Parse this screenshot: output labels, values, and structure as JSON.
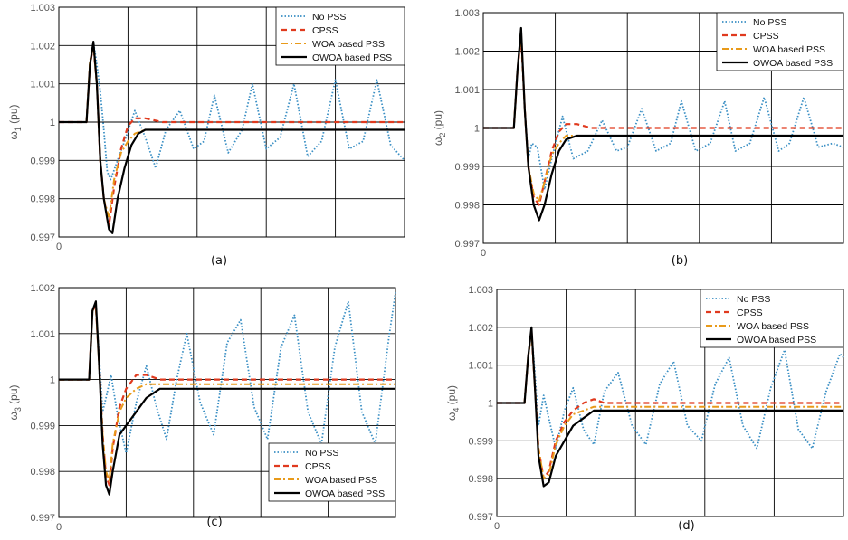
{
  "chart_data": [
    {
      "type": "line",
      "caption": "(a)",
      "ylabel_sym": "ω",
      "ylabel_sub": "1",
      "ylabel_unit": " (pu)",
      "ylim": [
        0.997,
        1.003
      ],
      "xlim": [
        0,
        10
      ],
      "yticks": [
        "1.003",
        "1.002",
        "1.001",
        "1",
        "0.999",
        "0.998",
        "0.997"
      ],
      "ytick_values": [
        1.003,
        1.002,
        1.001,
        1.0,
        0.999,
        0.998,
        0.997
      ],
      "xtick_label": "0",
      "grid": true,
      "legend_position": "top-right",
      "series": [
        {
          "name": "No PSS",
          "color": "#3a8fc4",
          "style": "dotted",
          "x": [
            0,
            0.8,
            0.9,
            1.0,
            1.1,
            1.2,
            1.3,
            1.4,
            1.5,
            1.7,
            1.9,
            2.2,
            2.5,
            2.8,
            3.1,
            3.5,
            3.9,
            4.2,
            4.5,
            4.9,
            5.3,
            5.6,
            6.0,
            6.4,
            6.8,
            7.2,
            7.6,
            8.0,
            8.4,
            8.8,
            9.2,
            9.6,
            10
          ],
          "y": [
            1.0,
            1.0,
            1.0015,
            1.0021,
            1.0015,
            1.0008,
            0.9998,
            0.9987,
            0.9985,
            0.999,
            0.9995,
            1.0003,
            0.9996,
            0.9988,
            0.9998,
            1.0003,
            0.9993,
            0.9995,
            1.0007,
            0.9992,
            0.9998,
            1.001,
            0.9993,
            0.9996,
            1.001,
            0.9991,
            0.9995,
            1.0011,
            0.9993,
            0.9995,
            1.0011,
            0.9994,
            0.999
          ]
        },
        {
          "name": "CPSS",
          "color": "#e03a1e",
          "style": "dashed",
          "x": [
            0,
            0.8,
            0.9,
            1.0,
            1.1,
            1.2,
            1.3,
            1.45,
            1.6,
            1.8,
            2.0,
            2.2,
            2.5,
            3.0,
            4,
            5,
            6,
            7,
            8,
            9,
            10
          ],
          "y": [
            1.0,
            1.0,
            1.0015,
            1.002,
            1.001,
            0.999,
            0.998,
            0.9973,
            0.9983,
            0.9993,
            0.9999,
            1.0001,
            1.0001,
            1.0,
            1.0,
            1.0,
            1.0,
            1.0,
            1.0,
            1.0,
            1.0
          ]
        },
        {
          "name": "WOA based PSS",
          "color": "#e89a1a",
          "style": "dashdot",
          "x": [
            0,
            0.8,
            0.9,
            1.0,
            1.1,
            1.2,
            1.3,
            1.45,
            1.6,
            1.8,
            2.0,
            2.2,
            2.5,
            3.0,
            4,
            5,
            6,
            7,
            8,
            9,
            10
          ],
          "y": [
            1.0,
            1.0,
            1.0016,
            1.002,
            1.001,
            0.999,
            0.998,
            0.9975,
            0.9985,
            0.9992,
            0.9995,
            0.9997,
            0.9998,
            0.9998,
            0.9998,
            0.9998,
            0.9998,
            0.9998,
            0.9998,
            0.9998,
            0.9998
          ]
        },
        {
          "name": "OWOA based PSS",
          "color": "#000000",
          "style": "solid",
          "x": [
            0,
            0.8,
            0.9,
            1.0,
            1.1,
            1.2,
            1.3,
            1.45,
            1.55,
            1.7,
            1.9,
            2.1,
            2.3,
            2.5,
            3.0,
            4,
            5,
            6,
            7,
            8,
            9,
            10
          ],
          "y": [
            1.0,
            1.0,
            1.0015,
            1.0021,
            1.001,
            0.999,
            0.998,
            0.9972,
            0.9971,
            0.998,
            0.9988,
            0.9994,
            0.9997,
            0.9998,
            0.9998,
            0.9998,
            0.9998,
            0.9998,
            0.9998,
            0.9998,
            0.9998,
            0.9998
          ]
        }
      ]
    },
    {
      "type": "line",
      "caption": "(b)",
      "ylabel_sym": "ω",
      "ylabel_sub": "2",
      "ylabel_unit": " (pu)",
      "ylim": [
        0.997,
        1.003
      ],
      "xlim": [
        0,
        10
      ],
      "yticks": [
        "1.003",
        "1.002",
        "1.001",
        "1",
        "0.999",
        "0.998",
        "0.997"
      ],
      "ytick_values": [
        1.003,
        1.002,
        1.001,
        1.0,
        0.999,
        0.998,
        0.997
      ],
      "xtick_label": "0",
      "grid": true,
      "legend_position": "top-right",
      "series": [
        {
          "name": "No PSS",
          "color": "#3a8fc4",
          "style": "dotted",
          "x": [
            0,
            0.85,
            0.95,
            1.05,
            1.15,
            1.25,
            1.35,
            1.5,
            1.7,
            1.9,
            2.2,
            2.5,
            2.9,
            3.3,
            3.7,
            4.0,
            4.4,
            4.8,
            5.2,
            5.5,
            5.9,
            6.3,
            6.7,
            7.0,
            7.4,
            7.8,
            8.2,
            8.5,
            8.9,
            9.3,
            9.7,
            10
          ],
          "y": [
            1.0,
            1.0,
            1.0015,
            1.0024,
            1.0005,
            0.9992,
            0.9996,
            0.9995,
            0.9984,
            0.9992,
            1.0003,
            0.9992,
            0.9994,
            1.0002,
            0.9994,
            0.9995,
            1.0005,
            0.9994,
            0.9996,
            1.0007,
            0.9994,
            0.9996,
            1.0007,
            0.9994,
            0.9996,
            1.0008,
            0.9994,
            0.9996,
            1.0008,
            0.9995,
            0.9996,
            0.9995
          ]
        },
        {
          "name": "CPSS",
          "color": "#e03a1e",
          "style": "dashed",
          "x": [
            0,
            0.85,
            0.95,
            1.05,
            1.15,
            1.25,
            1.4,
            1.55,
            1.7,
            1.9,
            2.1,
            2.3,
            2.6,
            3.0,
            4,
            5,
            6,
            7,
            8,
            9,
            10
          ],
          "y": [
            1.0,
            1.0,
            1.0015,
            1.0024,
            1.0005,
            0.999,
            0.9982,
            0.998,
            0.9986,
            0.9994,
            0.9999,
            1.0001,
            1.0001,
            1.0,
            1.0,
            1.0,
            1.0,
            1.0,
            1.0,
            1.0,
            1.0
          ]
        },
        {
          "name": "WOA based PSS",
          "color": "#e89a1a",
          "style": "dashdot",
          "x": [
            0,
            0.85,
            0.95,
            1.05,
            1.15,
            1.25,
            1.4,
            1.55,
            1.7,
            1.9,
            2.1,
            2.3,
            2.6,
            3.0,
            4,
            5,
            6,
            7,
            8,
            9,
            10
          ],
          "y": [
            1.0,
            1.0,
            1.0015,
            1.0025,
            1.0005,
            0.999,
            0.9983,
            0.9981,
            0.9986,
            0.9993,
            0.9996,
            0.9998,
            0.9998,
            0.9998,
            0.9998,
            0.9998,
            0.9998,
            0.9998,
            0.9998,
            0.9998,
            0.9998
          ]
        },
        {
          "name": "OWOA based PSS",
          "color": "#000000",
          "style": "solid",
          "x": [
            0,
            0.85,
            0.95,
            1.05,
            1.15,
            1.25,
            1.4,
            1.55,
            1.7,
            1.9,
            2.1,
            2.3,
            2.6,
            3.0,
            4,
            5,
            6,
            7,
            8,
            9,
            10
          ],
          "y": [
            1.0,
            1.0,
            1.0015,
            1.0026,
            1.0005,
            0.999,
            0.998,
            0.9976,
            0.998,
            0.9988,
            0.9994,
            0.9997,
            0.9998,
            0.9998,
            0.9998,
            0.9998,
            0.9998,
            0.9998,
            0.9998,
            0.9998,
            0.9998
          ]
        }
      ]
    },
    {
      "type": "line",
      "caption": "(c)",
      "ylabel_sym": "ω",
      "ylabel_sub": "3",
      "ylabel_unit": " (pu)",
      "ylim": [
        0.997,
        1.002
      ],
      "xlim": [
        0,
        10
      ],
      "yticks": [
        "1.002",
        "1.001",
        "1",
        "0.999",
        "0.998",
        "0.997"
      ],
      "ytick_values": [
        1.002,
        1.001,
        1.0,
        0.999,
        0.998,
        0.997
      ],
      "xtick_label": "0",
      "grid": true,
      "legend_position": "bottom-right",
      "series": [
        {
          "name": "No PSS",
          "color": "#3a8fc4",
          "style": "dotted",
          "x": [
            0,
            0.9,
            1.0,
            1.1,
            1.2,
            1.3,
            1.4,
            1.55,
            1.75,
            2.0,
            2.3,
            2.6,
            2.9,
            3.2,
            3.5,
            3.8,
            4.2,
            4.6,
            5.0,
            5.4,
            5.8,
            6.2,
            6.6,
            7.0,
            7.4,
            7.8,
            8.2,
            8.6,
            9.0,
            9.4,
            9.8,
            10
          ],
          "y": [
            1.0,
            1.0,
            1.0015,
            1.0016,
            1.0005,
            0.9993,
            0.9996,
            1.0001,
            0.9992,
            0.9984,
            0.9995,
            1.0003,
            0.9994,
            0.9987,
            1.0,
            1.001,
            0.9995,
            0.9988,
            1.0008,
            1.0013,
            0.9994,
            0.9987,
            1.0007,
            1.0014,
            0.9993,
            0.9986,
            1.0007,
            1.0017,
            0.9993,
            0.9986,
            1.0009,
            1.0019
          ]
        },
        {
          "name": "CPSS",
          "color": "#e03a1e",
          "style": "dashed",
          "x": [
            0,
            0.9,
            1.0,
            1.1,
            1.2,
            1.3,
            1.4,
            1.5,
            1.6,
            1.8,
            2.0,
            2.3,
            2.6,
            3.0,
            4,
            5,
            6,
            7,
            8,
            9,
            10
          ],
          "y": [
            1.0,
            1.0,
            1.0015,
            1.0016,
            1.0003,
            0.9988,
            0.9979,
            0.9977,
            0.9985,
            0.9994,
            0.9998,
            1.0001,
            1.0001,
            1.0,
            1.0,
            1.0,
            1.0,
            1.0,
            1.0,
            1.0,
            1.0
          ]
        },
        {
          "name": "WOA based PSS",
          "color": "#e89a1a",
          "style": "dashdot",
          "x": [
            0,
            0.9,
            1.0,
            1.1,
            1.2,
            1.3,
            1.4,
            1.5,
            1.6,
            1.8,
            2.0,
            2.3,
            2.6,
            3.0,
            4,
            5,
            6,
            7,
            8,
            9,
            10
          ],
          "y": [
            1.0,
            1.0,
            1.0015,
            1.0016,
            1.0003,
            0.9988,
            0.998,
            0.9978,
            0.9986,
            0.9993,
            0.9996,
            0.9998,
            0.9999,
            0.9999,
            0.9999,
            0.9999,
            0.9999,
            0.9999,
            0.9999,
            0.9999,
            0.9999
          ]
        },
        {
          "name": "OWOA based PSS",
          "color": "#000000",
          "style": "solid",
          "x": [
            0,
            0.9,
            1.0,
            1.1,
            1.2,
            1.3,
            1.4,
            1.5,
            1.6,
            1.8,
            2.0,
            2.3,
            2.6,
            3.0,
            3.5,
            4,
            5,
            6,
            7,
            8,
            9,
            10
          ],
          "y": [
            1.0,
            1.0,
            1.0015,
            1.0017,
            1.0003,
            0.9986,
            0.9977,
            0.9975,
            0.998,
            0.9988,
            0.999,
            0.9993,
            0.9996,
            0.9998,
            0.9998,
            0.9998,
            0.9998,
            0.9998,
            0.9998,
            0.9998,
            0.9998,
            0.9998
          ]
        }
      ]
    },
    {
      "type": "line",
      "caption": "(d)",
      "ylabel_sym": "ω",
      "ylabel_sub": "4",
      "ylabel_unit": " (pu)",
      "ylim": [
        0.997,
        1.003
      ],
      "xlim": [
        0,
        10
      ],
      "yticks": [
        "1.003",
        "1.002",
        "1.001",
        "1",
        "0.999",
        "0.998",
        "0.997"
      ],
      "ytick_values": [
        1.003,
        1.002,
        1.001,
        1.0,
        0.999,
        0.998,
        0.997
      ],
      "xtick_label": "0",
      "grid": true,
      "legend_position": "top-right",
      "series": [
        {
          "name": "No PSS",
          "color": "#3a8fc4",
          "style": "dotted",
          "x": [
            0,
            0.8,
            0.9,
            1.0,
            1.1,
            1.2,
            1.35,
            1.5,
            1.7,
            1.95,
            2.2,
            2.5,
            2.8,
            3.1,
            3.5,
            3.9,
            4.3,
            4.7,
            5.1,
            5.5,
            5.9,
            6.3,
            6.7,
            7.1,
            7.5,
            7.9,
            8.3,
            8.7,
            9.1,
            9.5,
            9.9,
            10
          ],
          "y": [
            1.0,
            1.0,
            1.0012,
            1.0019,
            1.0008,
            0.9994,
            1.0002,
            0.9996,
            0.9988,
            0.9998,
            1.0004,
            0.9993,
            0.9989,
            1.0003,
            1.0008,
            0.9994,
            0.9989,
            1.0005,
            1.0011,
            0.9994,
            0.999,
            1.0005,
            1.0012,
            0.9994,
            0.9988,
            1.0004,
            1.0014,
            0.9993,
            0.9988,
            1.0003,
            1.0013,
            1.0012
          ]
        },
        {
          "name": "CPSS",
          "color": "#e03a1e",
          "style": "dashed",
          "x": [
            0,
            0.8,
            0.9,
            1.0,
            1.1,
            1.2,
            1.35,
            1.5,
            1.7,
            1.95,
            2.2,
            2.5,
            2.8,
            3.1,
            4,
            5,
            6,
            7,
            8,
            9,
            10
          ],
          "y": [
            1.0,
            1.0,
            1.0012,
            1.0019,
            1.0004,
            0.9988,
            0.998,
            0.9982,
            0.999,
            0.9995,
            0.9998,
            1.0,
            1.0001,
            1.0,
            1.0,
            1.0,
            1.0,
            1.0,
            1.0,
            1.0,
            1.0
          ]
        },
        {
          "name": "WOA based PSS",
          "color": "#e89a1a",
          "style": "dashdot",
          "x": [
            0,
            0.8,
            0.9,
            1.0,
            1.1,
            1.2,
            1.35,
            1.5,
            1.7,
            1.95,
            2.2,
            2.5,
            2.8,
            3.1,
            4,
            5,
            6,
            7,
            8,
            9,
            10
          ],
          "y": [
            1.0,
            1.0,
            1.0012,
            1.0019,
            1.0004,
            0.9988,
            0.998,
            0.9981,
            0.9989,
            0.9994,
            0.9997,
            0.9998,
            0.9999,
            0.9999,
            0.9999,
            0.9999,
            0.9999,
            0.9999,
            0.9999,
            0.9999,
            0.9999
          ]
        },
        {
          "name": "OWOA based PSS",
          "color": "#000000",
          "style": "solid",
          "x": [
            0,
            0.8,
            0.9,
            1.0,
            1.1,
            1.2,
            1.35,
            1.5,
            1.7,
            1.95,
            2.2,
            2.5,
            2.8,
            3.1,
            4,
            5,
            6,
            7,
            8,
            9,
            10
          ],
          "y": [
            1.0,
            1.0,
            1.0012,
            1.002,
            1.0004,
            0.9986,
            0.9978,
            0.9979,
            0.9986,
            0.999,
            0.9994,
            0.9996,
            0.9998,
            0.9998,
            0.9998,
            0.9998,
            0.9998,
            0.9998,
            0.9998,
            0.9998,
            0.9998
          ]
        }
      ]
    }
  ]
}
